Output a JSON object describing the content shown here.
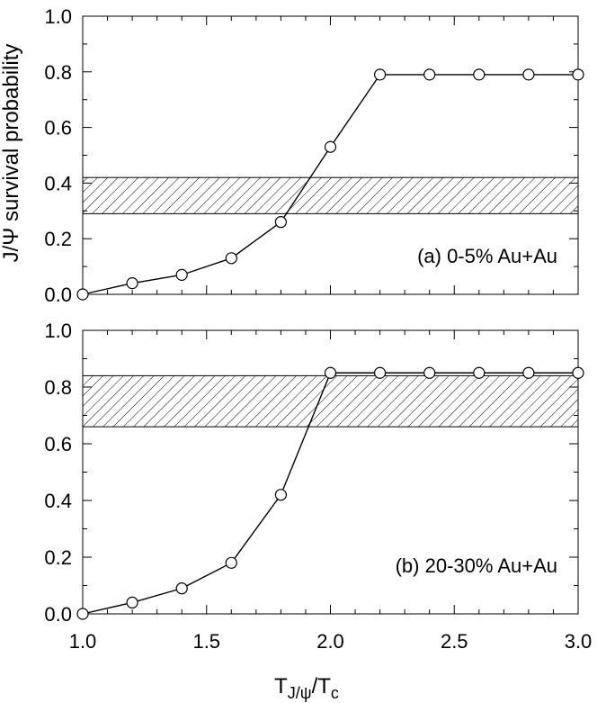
{
  "chart_data": {
    "type": "line",
    "ylabel": "J/Ψ survival probability",
    "xlabel": {
      "main": "T",
      "sub": "J/ψ",
      "mid": "/T",
      "sub2": "c"
    },
    "xlim": [
      1.0,
      3.0
    ],
    "ylim": [
      0.0,
      1.0
    ],
    "x_ticks": [
      "1.0",
      "1.5",
      "2.0",
      "2.5",
      "3.0"
    ],
    "y_ticks": [
      "0.0",
      "0.2",
      "0.4",
      "0.6",
      "0.8",
      "1.0"
    ],
    "panels": [
      {
        "annotation": "(a) 0-5% Au+Au",
        "x": [
          1.0,
          1.2,
          1.4,
          1.6,
          1.8,
          2.0,
          2.2,
          2.4,
          2.6,
          2.8,
          3.0
        ],
        "y": [
          0.0,
          0.04,
          0.07,
          0.13,
          0.26,
          0.53,
          0.79,
          0.79,
          0.79,
          0.79,
          0.79
        ],
        "band": [
          0.29,
          0.42
        ]
      },
      {
        "annotation": "(b) 20-30% Au+Au",
        "x": [
          1.0,
          1.2,
          1.4,
          1.6,
          1.8,
          2.0,
          2.2,
          2.4,
          2.6,
          2.8,
          3.0
        ],
        "y": [
          0.0,
          0.04,
          0.09,
          0.18,
          0.42,
          0.85,
          0.85,
          0.85,
          0.85,
          0.85,
          0.85
        ],
        "band": [
          0.66,
          0.84
        ]
      }
    ]
  }
}
